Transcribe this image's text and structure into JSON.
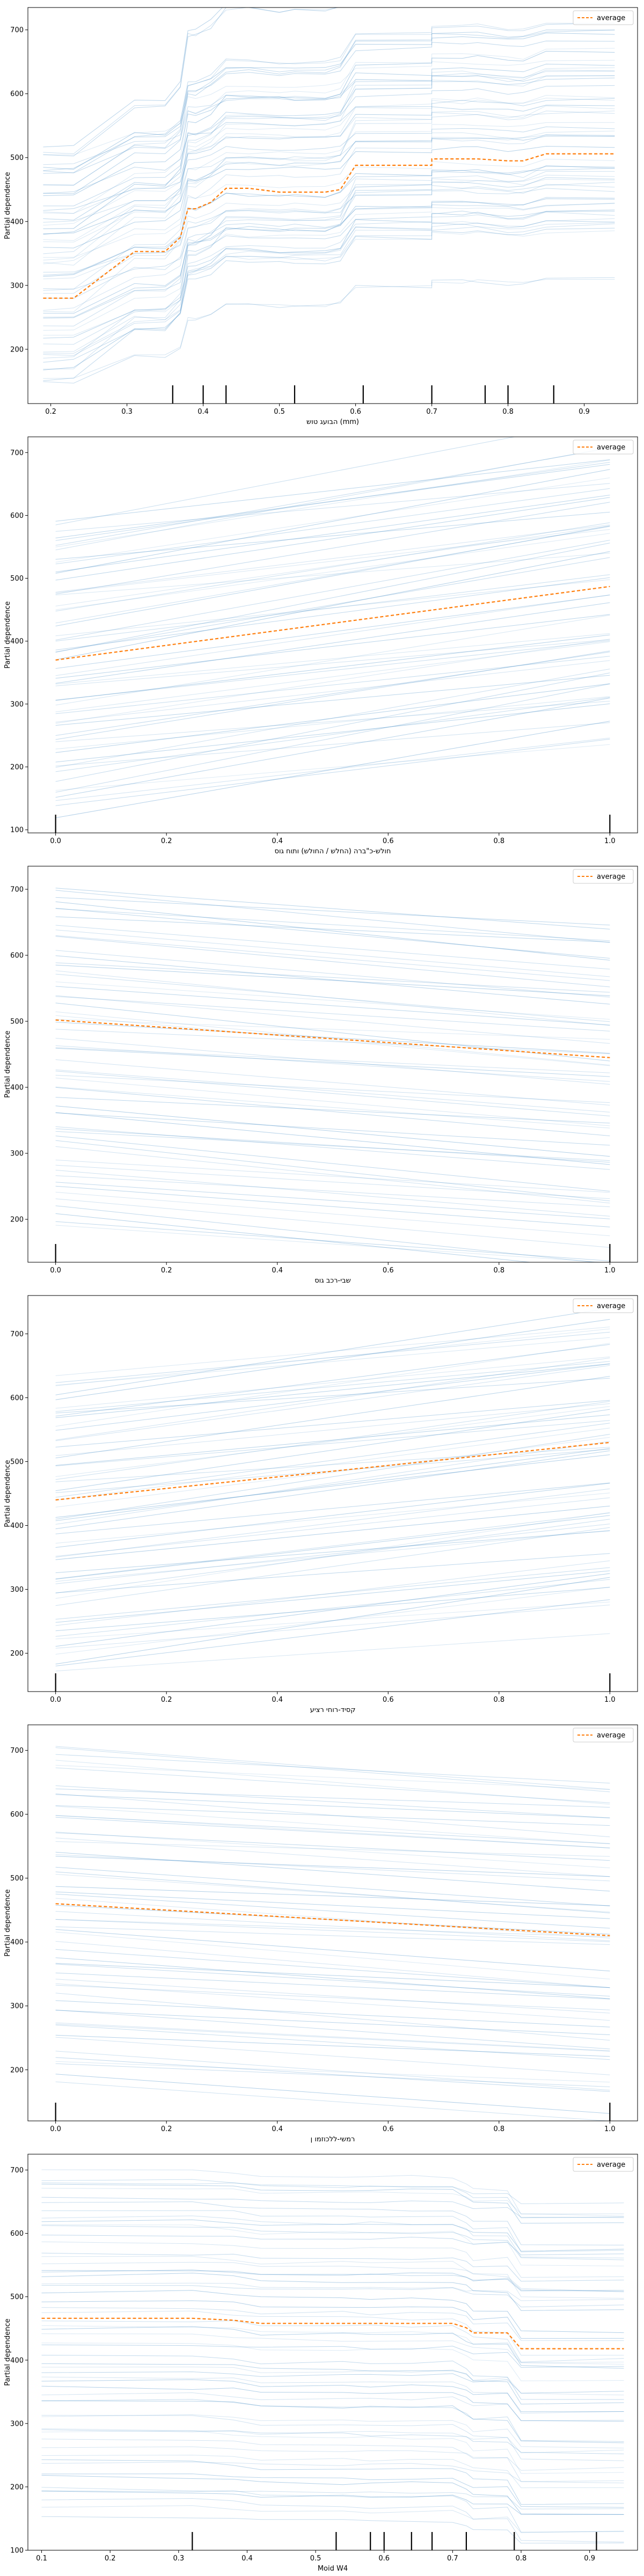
{
  "chart_data": [
    {
      "type": "line",
      "xlabel": "הבועג טוש (mm)",
      "ylabel": "Partial dependence",
      "xlim": [
        0.17,
        0.97
      ],
      "ylim": [
        115,
        735
      ],
      "xticks": [
        0.2,
        0.3,
        0.4,
        0.5,
        0.6,
        0.7,
        0.8,
        0.9
      ],
      "yticks": [
        200,
        300,
        400,
        500,
        600,
        700
      ],
      "legend": "average",
      "rug": [
        0.36,
        0.4,
        0.43,
        0.52,
        0.61,
        0.7,
        0.77,
        0.8,
        0.86
      ],
      "ice_shape": {
        "x": [
          0.19,
          0.23,
          0.31,
          0.35,
          0.37,
          0.38,
          0.39,
          0.41,
          0.43,
          0.46,
          0.5,
          0.52,
          0.56,
          0.58,
          0.6,
          0.7,
          0.7,
          0.74,
          0.76,
          0.8,
          0.82,
          0.85,
          0.94
        ],
        "d": [
          0,
          0,
          55,
          55,
          75,
          135,
          135,
          145,
          165,
          165,
          163,
          163,
          163,
          168,
          205,
          205,
          215,
          215,
          215,
          210,
          210,
          220,
          220
        ]
      },
      "ice_count": 60,
      "ice_base": [
        140,
        520
      ],
      "ice_end": [
        210,
        720
      ],
      "average": {
        "x": [
          0.19,
          0.23,
          0.31,
          0.35,
          0.37,
          0.38,
          0.39,
          0.41,
          0.43,
          0.46,
          0.5,
          0.52,
          0.56,
          0.58,
          0.6,
          0.7,
          0.7,
          0.74,
          0.76,
          0.8,
          0.82,
          0.85,
          0.94
        ],
        "y": [
          280,
          280,
          353,
          353,
          375,
          420,
          420,
          430,
          452,
          452,
          446,
          446,
          446,
          450,
          488,
          488,
          498,
          498,
          498,
          495,
          495,
          506,
          506
        ]
      }
    },
    {
      "type": "line",
      "xlabel": "חולש-כ\"ברה (החלש / החולש) ותוח גוס",
      "ylabel": "Partial dependence",
      "xlim": [
        -0.05,
        1.05
      ],
      "ylim": [
        95,
        725
      ],
      "xticks": [
        0.0,
        0.2,
        0.4,
        0.6,
        0.8,
        1.0
      ],
      "yticks": [
        100,
        200,
        300,
        400,
        500,
        600,
        700
      ],
      "legend": "average",
      "rug": [
        0.0,
        1.0
      ],
      "ice_shape": {
        "x": [
          0.0,
          1.0
        ],
        "d": [
          0,
          120
        ]
      },
      "ice_count": 60,
      "ice_base": [
        120,
        595
      ],
      "ice_end": [
        165,
        690
      ],
      "average": {
        "x": [
          0.0,
          1.0
        ],
        "y": [
          370,
          487
        ]
      }
    },
    {
      "type": "line",
      "xlabel": "שבי-רכב גוס",
      "ylabel": "Partial dependence",
      "xlim": [
        -0.05,
        1.05
      ],
      "ylim": [
        135,
        735
      ],
      "xticks": [
        0.0,
        0.2,
        0.4,
        0.6,
        0.8,
        1.0
      ],
      "yticks": [
        200,
        300,
        400,
        500,
        600,
        700
      ],
      "legend": "average",
      "rug": [
        0.0,
        1.0
      ],
      "ice_shape": {
        "x": [
          0.0,
          1.0
        ],
        "d": [
          0,
          -60
        ]
      },
      "ice_count": 60,
      "ice_base": [
        185,
        710
      ],
      "ice_end": [
        165,
        650
      ],
      "average": {
        "x": [
          0.0,
          1.0
        ],
        "y": [
          502,
          445
        ]
      }
    },
    {
      "type": "line",
      "xlabel": "קסיד-רוחי רציע",
      "ylabel": "Partial dependence",
      "xlim": [
        -0.05,
        1.05
      ],
      "ylim": [
        140,
        760
      ],
      "xticks": [
        0.0,
        0.2,
        0.4,
        0.6,
        0.8,
        1.0
      ],
      "yticks": [
        200,
        300,
        400,
        500,
        600,
        700
      ],
      "legend": "average",
      "rug": [
        0.0,
        1.0
      ],
      "ice_shape": {
        "x": [
          0.0,
          1.0
        ],
        "d": [
          0,
          95
        ]
      },
      "ice_count": 60,
      "ice_base": [
        160,
        640
      ],
      "ice_end": [
        250,
        750
      ],
      "average": {
        "x": [
          0.0,
          1.0
        ],
        "y": [
          440,
          530
        ]
      }
    },
    {
      "type": "line",
      "xlabel": "רמשי-ללכוזמו ן",
      "ylabel": "Partial dependence",
      "xlim": [
        -0.05,
        1.05
      ],
      "ylim": [
        120,
        740
      ],
      "xticks": [
        0.0,
        0.2,
        0.4,
        0.6,
        0.8,
        1.0
      ],
      "yticks": [
        200,
        300,
        400,
        500,
        600,
        700
      ],
      "legend": "average",
      "rug": [
        0.0,
        1.0
      ],
      "ice_shape": {
        "x": [
          0.0,
          1.0
        ],
        "d": [
          0,
          -50
        ]
      },
      "ice_count": 60,
      "ice_base": [
        180,
        710
      ],
      "ice_end": [
        160,
        650
      ],
      "average": {
        "x": [
          0.0,
          1.0
        ],
        "y": [
          460,
          410
        ]
      }
    },
    {
      "type": "line",
      "xlabel": "Moid W4",
      "ylabel": "Partial dependence",
      "xlim": [
        0.08,
        0.97
      ],
      "ylim": [
        100,
        725
      ],
      "xticks": [
        0.1,
        0.2,
        0.3,
        0.4,
        0.5,
        0.6,
        0.7,
        0.8,
        0.9
      ],
      "yticks": [
        100,
        200,
        300,
        400,
        500,
        600,
        700
      ],
      "legend": "average",
      "rug": [
        0.32,
        0.53,
        0.58,
        0.6,
        0.64,
        0.67,
        0.72,
        0.79,
        0.91
      ],
      "ice_shape": {
        "x": [
          0.1,
          0.32,
          0.38,
          0.42,
          0.54,
          0.58,
          0.64,
          0.7,
          0.72,
          0.73,
          0.78,
          0.8,
          0.95
        ],
        "d": [
          0,
          0,
          -3,
          -8,
          -8,
          -8,
          -8,
          -8,
          -15,
          -22,
          -22,
          -48,
          -48
        ]
      },
      "ice_count": 60,
      "ice_base": [
        145,
        705
      ],
      "ice_end": [
        120,
        660
      ],
      "average": {
        "x": [
          0.1,
          0.32,
          0.38,
          0.42,
          0.54,
          0.58,
          0.64,
          0.7,
          0.72,
          0.73,
          0.78,
          0.8,
          0.95
        ],
        "y": [
          466,
          466,
          463,
          458,
          458,
          458,
          458,
          458,
          451,
          443,
          443,
          418,
          418
        ]
      }
    }
  ]
}
